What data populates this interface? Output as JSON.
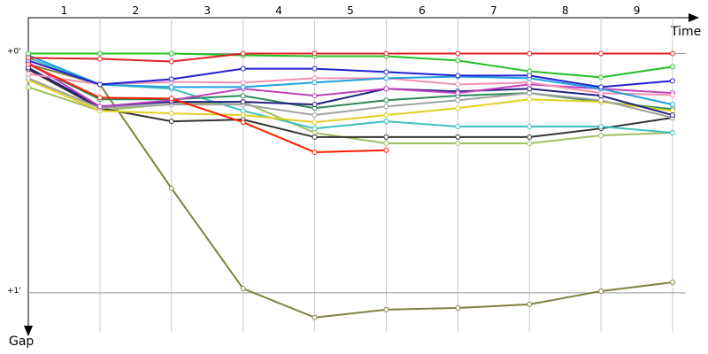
{
  "chart_data": {
    "type": "line",
    "x_title": "Time",
    "y_title": "Gap",
    "lap_labels": [
      "1",
      "2",
      "3",
      "4",
      "5",
      "6",
      "7",
      "8",
      "9"
    ],
    "x": [
      0,
      1,
      2,
      3,
      4,
      5,
      6,
      7,
      8,
      9
    ],
    "xlim": [
      0,
      9
    ],
    "ylim": [
      -0.15,
      1.2
    ],
    "y_reversed": true,
    "yticks": [
      {
        "value": 0,
        "label": "+0'"
      },
      {
        "value": 1,
        "label": "+1'"
      }
    ],
    "grid": true,
    "series": [
      {
        "color": "#808040",
        "values": [
          0.044,
          0.129,
          0.563,
          0.982,
          1.103,
          1.07,
          1.063,
          1.048,
          0.993,
          0.956
        ]
      },
      {
        "color": "#a0c060",
        "values": [
          0.14,
          0.239,
          0.21,
          0.202,
          0.331,
          0.375,
          0.375,
          0.375,
          0.342,
          0.331
        ]
      },
      {
        "color": "#333333",
        "values": [
          0.066,
          0.228,
          0.283,
          0.276,
          0.349,
          0.349,
          0.349,
          0.349,
          0.313,
          0.268
        ]
      },
      {
        "color": "#40c0c0",
        "values": [
          0.018,
          0.129,
          0.147,
          0.239,
          0.313,
          0.283,
          0.305,
          0.305,
          0.305,
          0.331
        ]
      },
      {
        "color": "#2a8a5a",
        "values": [
          0.044,
          0.191,
          0.191,
          0.176,
          0.228,
          0.195,
          0.176,
          0.165,
          0.202,
          0.232
        ]
      },
      {
        "color": "#e0d020",
        "values": [
          0.11,
          0.239,
          0.25,
          0.257,
          0.287,
          0.257,
          0.228,
          0.191,
          0.202,
          0.239
        ]
      },
      {
        "color": "#a0a0a0",
        "values": [
          0.103,
          0.228,
          0.213,
          0.213,
          0.257,
          0.221,
          0.195,
          0.165,
          0.195,
          0.268
        ]
      },
      {
        "color": "#202080",
        "values": [
          0.059,
          0.221,
          0.202,
          0.202,
          0.213,
          0.147,
          0.158,
          0.147,
          0.176,
          0.257
        ]
      },
      {
        "color": "#c040c0",
        "values": [
          0.037,
          0.221,
          0.195,
          0.147,
          0.176,
          0.147,
          0.165,
          0.129,
          0.147,
          0.165
        ]
      },
      {
        "color": "#f090b0",
        "values": [
          0.085,
          0.129,
          0.118,
          0.121,
          0.103,
          0.103,
          0.129,
          0.121,
          0.165,
          0.173
        ]
      },
      {
        "color": "#20a0e0",
        "values": [
          0.007,
          0.129,
          0.14,
          0.14,
          0.121,
          0.103,
          0.096,
          0.103,
          0.147,
          0.213
        ]
      },
      {
        "color": "#2020d0",
        "values": [
          0.029,
          0.129,
          0.107,
          0.063,
          0.063,
          0.077,
          0.092,
          0.092,
          0.14,
          0.114
        ]
      },
      {
        "color": "#ff2000",
        "values": [
          0.044,
          0.184,
          0.188,
          0.287,
          0.412,
          0.404,
          null,
          null,
          null,
          null
        ]
      },
      {
        "color": "#20c020",
        "values": [
          0,
          0,
          0,
          0.007,
          0.011,
          0.011,
          0.029,
          0.074,
          0.099,
          0.055
        ]
      },
      {
        "color": "#e02020",
        "values": [
          0.018,
          0.022,
          0.033,
          0,
          0,
          0,
          0,
          0,
          0,
          0
        ]
      }
    ]
  }
}
